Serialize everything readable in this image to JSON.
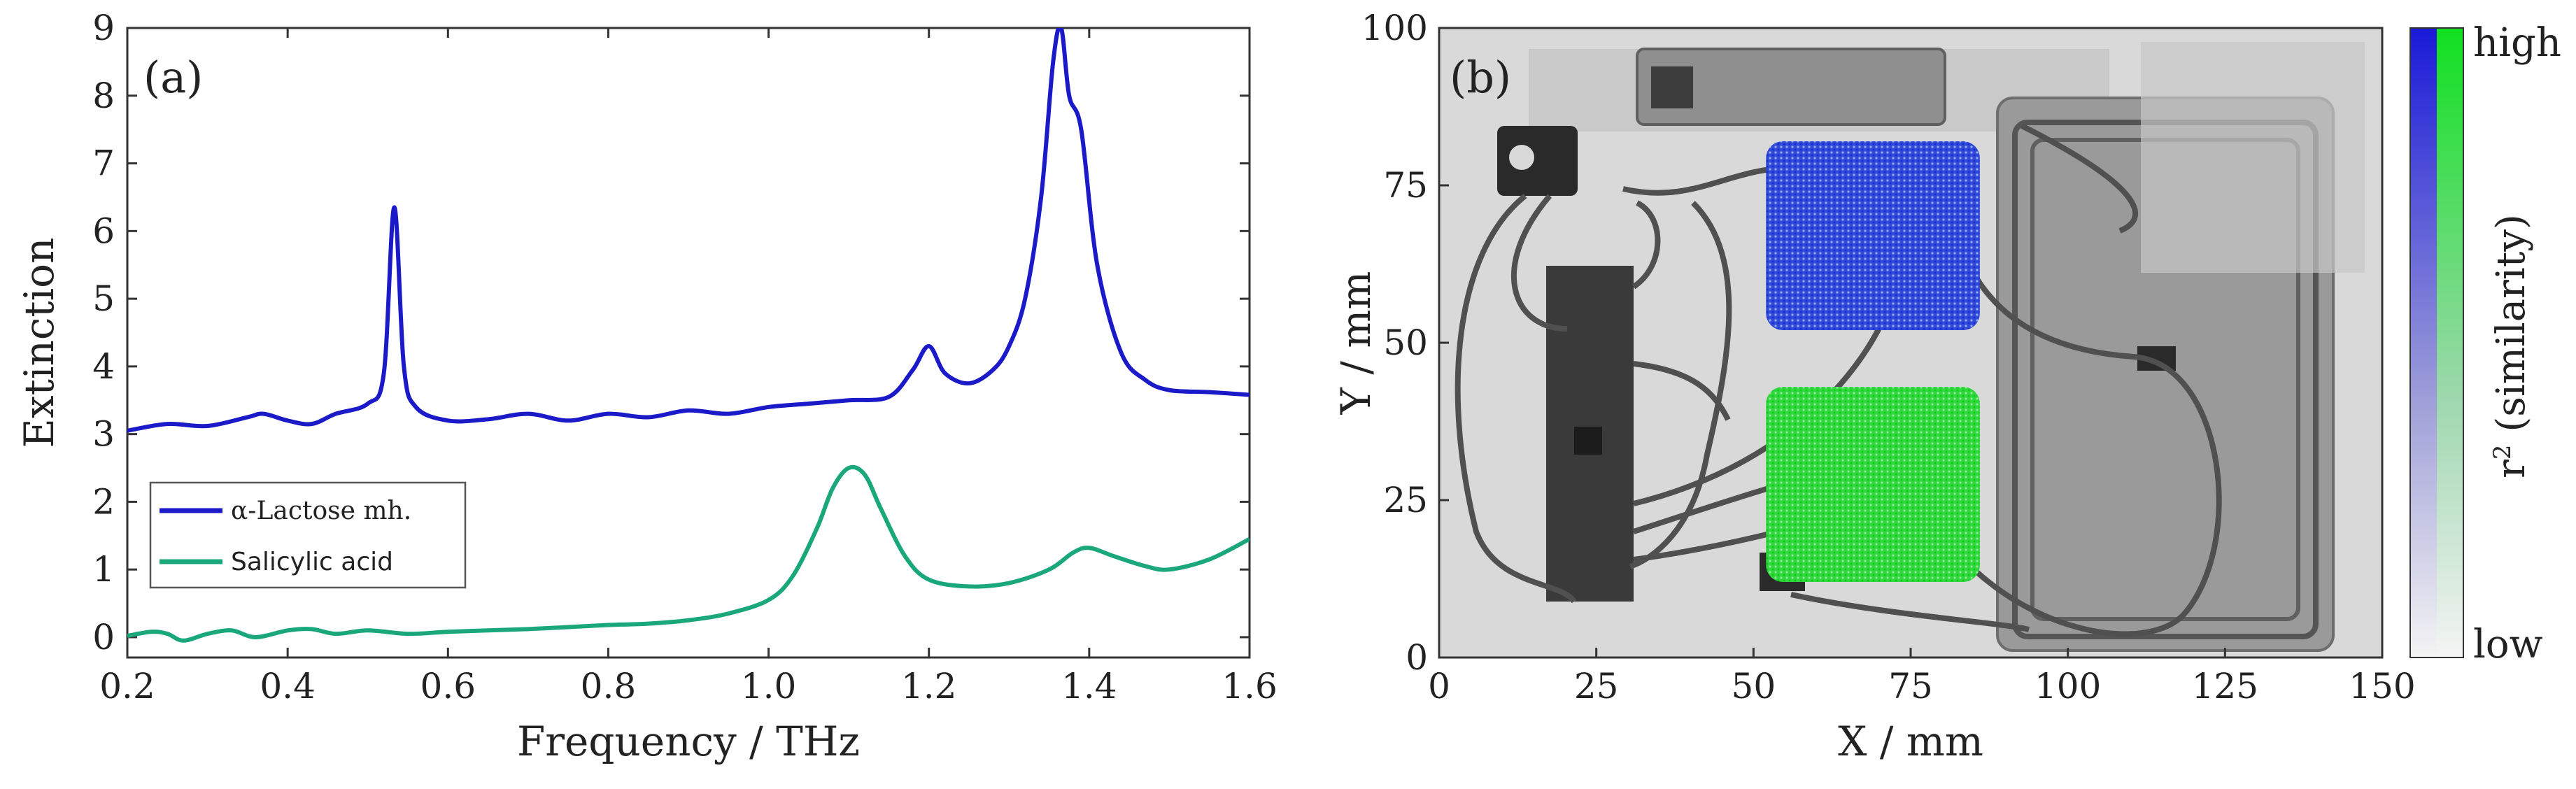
{
  "chart_data": [
    {
      "type": "line",
      "panel_label": "(a)",
      "xlabel": "Frequency / THz",
      "ylabel": "Extinction",
      "xlim": [
        0.2,
        1.6
      ],
      "ylim": [
        -0.3,
        9
      ],
      "xticks": [
        "0.2",
        "0.4",
        "0.6",
        "0.8",
        "1.0",
        "1.2",
        "1.4",
        "1.6"
      ],
      "yticks": [
        "0",
        "1",
        "2",
        "3",
        "4",
        "5",
        "6",
        "7",
        "8",
        "9"
      ],
      "legend_position": "bottom-left",
      "series": [
        {
          "name": "α-Lactose mh.",
          "color": "#1a1ac8",
          "x": [
            0.2,
            0.25,
            0.3,
            0.35,
            0.37,
            0.4,
            0.43,
            0.46,
            0.5,
            0.52,
            0.533,
            0.545,
            0.56,
            0.6,
            0.65,
            0.7,
            0.75,
            0.8,
            0.85,
            0.9,
            0.95,
            1.0,
            1.05,
            1.1,
            1.15,
            1.18,
            1.2,
            1.22,
            1.25,
            1.28,
            1.3,
            1.32,
            1.34,
            1.355,
            1.365,
            1.375,
            1.39,
            1.41,
            1.44,
            1.47,
            1.5,
            1.55,
            1.6
          ],
          "y": [
            3.05,
            3.15,
            3.12,
            3.25,
            3.3,
            3.2,
            3.15,
            3.3,
            3.45,
            3.9,
            6.35,
            4.0,
            3.4,
            3.2,
            3.22,
            3.3,
            3.2,
            3.3,
            3.25,
            3.35,
            3.3,
            3.4,
            3.45,
            3.5,
            3.55,
            3.95,
            4.3,
            3.9,
            3.75,
            3.95,
            4.3,
            5.0,
            6.5,
            8.5,
            9.0,
            8.0,
            7.5,
            5.5,
            4.2,
            3.8,
            3.65,
            3.62,
            3.58
          ]
        },
        {
          "name": "Salicylic acid",
          "color": "#1aa87a",
          "x": [
            0.2,
            0.23,
            0.25,
            0.27,
            0.3,
            0.33,
            0.36,
            0.4,
            0.43,
            0.46,
            0.5,
            0.55,
            0.6,
            0.65,
            0.7,
            0.75,
            0.8,
            0.85,
            0.9,
            0.95,
            1.0,
            1.03,
            1.06,
            1.08,
            1.1,
            1.12,
            1.14,
            1.17,
            1.2,
            1.25,
            1.3,
            1.35,
            1.38,
            1.4,
            1.43,
            1.47,
            1.5,
            1.55,
            1.6
          ],
          "y": [
            0.02,
            0.08,
            0.05,
            -0.05,
            0.05,
            0.1,
            0.0,
            0.1,
            0.12,
            0.05,
            0.1,
            0.05,
            0.08,
            0.1,
            0.12,
            0.15,
            0.18,
            0.2,
            0.25,
            0.35,
            0.55,
            0.9,
            1.6,
            2.2,
            2.5,
            2.4,
            1.9,
            1.2,
            0.85,
            0.75,
            0.8,
            1.0,
            1.25,
            1.32,
            1.2,
            1.05,
            1.0,
            1.15,
            1.45
          ]
        }
      ]
    },
    {
      "type": "heatmap",
      "panel_label": "(b)",
      "xlabel": "X / mm",
      "ylabel": "Y / mm",
      "xlim": [
        0,
        150
      ],
      "ylim": [
        0,
        100
      ],
      "xticks": [
        "0",
        "25",
        "50",
        "75",
        "100",
        "125",
        "150"
      ],
      "yticks": [
        "0",
        "25",
        "50",
        "75",
        "100"
      ],
      "colorbar": {
        "label": "r² (similarity)",
        "label_main": "r",
        "label_sup": "2",
        "label_rest": " (similarity)",
        "high": "high",
        "low": "low"
      },
      "regions": [
        {
          "name": "α-Lactose mh.",
          "color": "#1e3cff",
          "x_range": [
            52,
            86
          ],
          "y_range": [
            52,
            82
          ]
        },
        {
          "name": "Salicylic acid",
          "color": "#22e040",
          "x_range": [
            52,
            86
          ],
          "y_range": [
            12,
            43
          ]
        }
      ]
    }
  ]
}
